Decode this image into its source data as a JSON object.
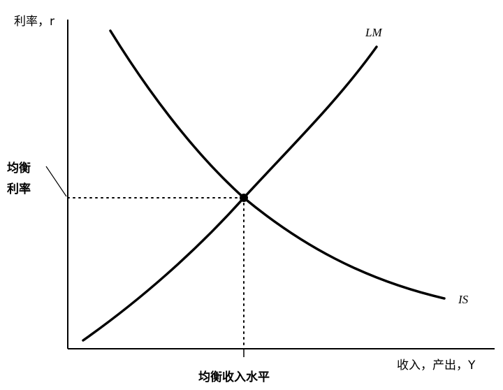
{
  "diagram": {
    "y_axis_label": "利率，r",
    "x_axis_label": "收入，产出，Y",
    "equilibrium_rate_label_line1": "均衡",
    "equilibrium_rate_label_line2": "利率",
    "equilibrium_income_label": "均衡收入水平",
    "curves": [
      {
        "name": "LM",
        "shape": "upward-sloping, convex"
      },
      {
        "name": "IS",
        "shape": "downward-sloping, convex"
      }
    ],
    "colors": {
      "ink": "#000000",
      "background": "#ffffff"
    }
  }
}
